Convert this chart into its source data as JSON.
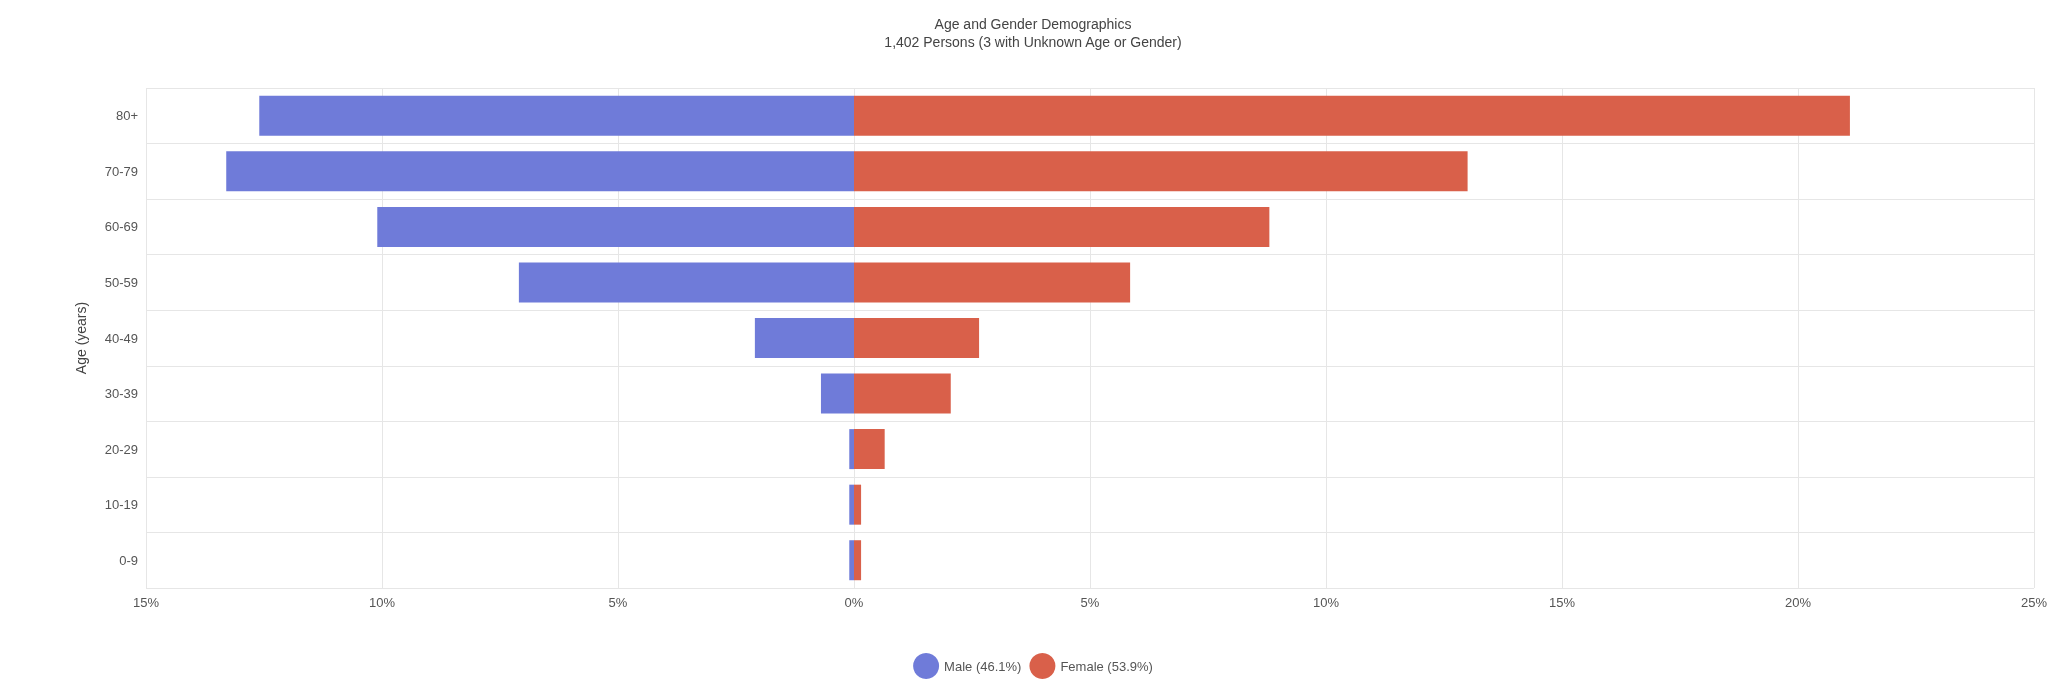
{
  "chart_data": {
    "type": "bar",
    "orientation": "horizontal",
    "stacked": true,
    "title": "Age and Gender Demographics",
    "subtitle": "1,402 Persons (3 with Unknown Age or Gender)",
    "ylabel": "Age (years)",
    "categories": [
      "80+",
      "70-79",
      "60-69",
      "50-59",
      "40-49",
      "30-39",
      "20-29",
      "10-19",
      "0-9"
    ],
    "series": [
      {
        "name": "Male (46.1%)",
        "color": "#6f7bd9",
        "values": [
          -12.6,
          -13.3,
          -10.1,
          -7.1,
          -2.1,
          -0.7,
          -0.1,
          -0.1,
          -0.1
        ]
      },
      {
        "name": "Female (53.9%)",
        "color": "#d9604a",
        "values": [
          21.1,
          13.0,
          8.8,
          5.85,
          2.65,
          2.05,
          0.65,
          0.15,
          0.15
        ]
      }
    ],
    "xlim": [
      -15,
      25
    ],
    "xticks": [
      {
        "value": -15,
        "label": "15%"
      },
      {
        "value": -10,
        "label": "10%"
      },
      {
        "value": -5,
        "label": "5%"
      },
      {
        "value": 0,
        "label": "0%"
      },
      {
        "value": 5,
        "label": "5%"
      },
      {
        "value": 10,
        "label": "10%"
      },
      {
        "value": 15,
        "label": "15%"
      },
      {
        "value": 20,
        "label": "20%"
      },
      {
        "value": 25,
        "label": "25%"
      }
    ],
    "grid": true,
    "legend": "bottom"
  }
}
